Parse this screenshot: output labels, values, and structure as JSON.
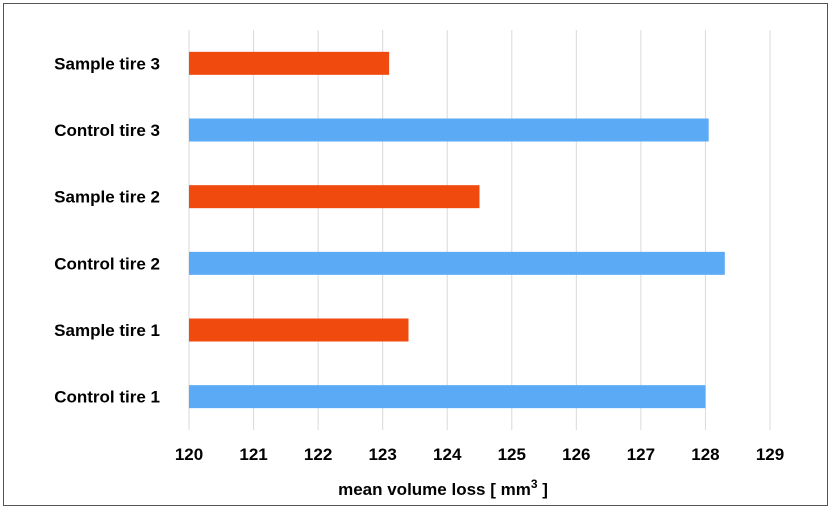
{
  "chart_data": {
    "type": "bar",
    "orientation": "horizontal",
    "categories": [
      "Control tire 1",
      "Sample tire 1",
      "Control tire 2",
      "Sample tire 2",
      "Control tire 3",
      "Sample tire 3"
    ],
    "values": [
      128.0,
      123.4,
      128.3,
      124.5,
      128.05,
      123.1
    ],
    "bar_colors": [
      "#5aaaf5",
      "#f04a0f",
      "#5aaaf5",
      "#f04a0f",
      "#5aaaf5",
      "#f04a0f"
    ],
    "xlim": [
      120,
      129
    ],
    "xticks": [
      "120",
      "121",
      "122",
      "123",
      "124",
      "125",
      "126",
      "127",
      "128",
      "129"
    ],
    "xlabel": "mean volume loss [ mm",
    "xlabel_superscript": "3",
    "xlabel_suffix": " ]",
    "grid": "vertical",
    "legend": "none"
  }
}
